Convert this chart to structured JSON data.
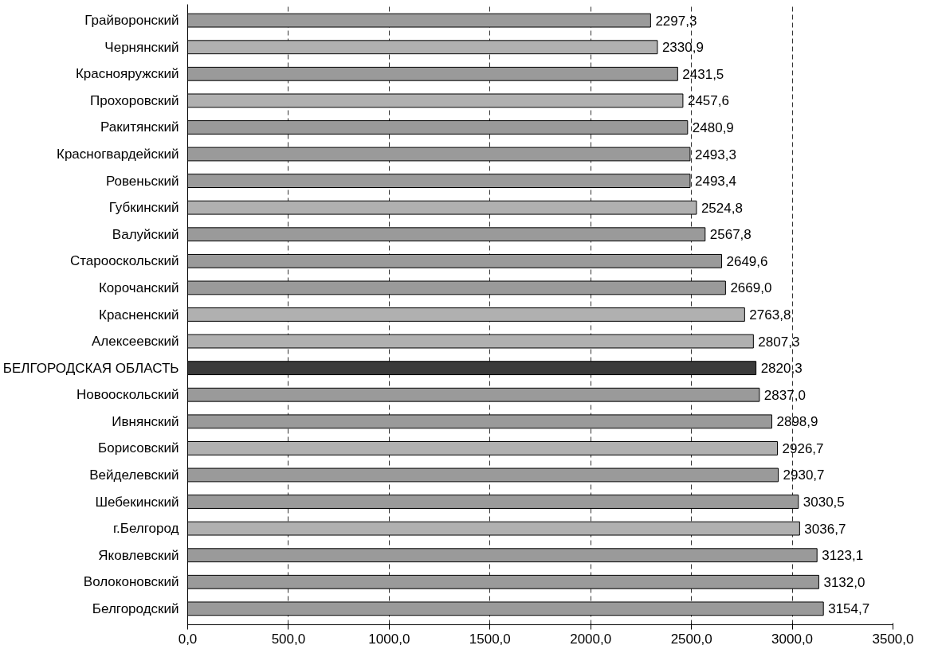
{
  "chart_data": {
    "type": "bar",
    "orientation": "horizontal",
    "categories": [
      "Грайворонский",
      "Чернянский",
      "Краснояружский",
      "Прохоровский",
      "Ракитянский",
      "Красногвардейский",
      "Ровеньский",
      "Губкинский",
      "Валуйский",
      "Старооскольский",
      "Корочанский",
      "Красненский",
      "Алексеевский",
      "БЕЛГОРОДСКАЯ ОБЛАСТЬ",
      "Новооскольский",
      "Ивнянский",
      "Борисовский",
      "Вейделевский",
      "Шебекинский",
      "г.Белгород",
      "Яковлевский",
      "Волоконовский",
      "Белгородский"
    ],
    "values": [
      2297.3,
      2330.9,
      2431.5,
      2457.6,
      2480.9,
      2493.3,
      2493.4,
      2524.8,
      2567.8,
      2649.6,
      2669.0,
      2763.8,
      2807.3,
      2820.3,
      2837.0,
      2898.9,
      2926.7,
      2930.7,
      3030.5,
      3036.7,
      3123.1,
      3132.0,
      3154.7
    ],
    "value_labels": [
      "2297,3",
      "2330,9",
      "2431,5",
      "2457,6",
      "2480,9",
      "2493,3",
      "2493,4",
      "2524,8",
      "2567,8",
      "2649,6",
      "2669,0",
      "2763,8",
      "2807,3",
      "2820,3",
      "2837,0",
      "2898,9",
      "2926,7",
      "2930,7",
      "3030,5",
      "3036,7",
      "3123,1",
      "3132,0",
      "3154,7"
    ],
    "colors": [
      "#9a9a9a",
      "#b0b0b0",
      "#9a9a9a",
      "#b0b0b0",
      "#9a9a9a",
      "#9a9a9a",
      "#9a9a9a",
      "#b0b0b0",
      "#9a9a9a",
      "#9a9a9a",
      "#9a9a9a",
      "#b0b0b0",
      "#b0b0b0",
      "#3a3a3a",
      "#9a9a9a",
      "#9a9a9a",
      "#b0b0b0",
      "#9a9a9a",
      "#9a9a9a",
      "#b0b0b0",
      "#9a9a9a",
      "#9a9a9a",
      "#9a9a9a"
    ],
    "xlim": [
      0,
      3500
    ],
    "xticks": [
      {
        "value": 0,
        "label": "0,0"
      },
      {
        "value": 500,
        "label": "500,0"
      },
      {
        "value": 1000,
        "label": "1000,0"
      },
      {
        "value": 1500,
        "label": "1500,0"
      },
      {
        "value": 2000,
        "label": "2000,0"
      },
      {
        "value": 2500,
        "label": "2500,0"
      },
      {
        "value": 3000,
        "label": "3000,0"
      },
      {
        "value": 3500,
        "label": "3500,0"
      }
    ],
    "grid": "x"
  }
}
